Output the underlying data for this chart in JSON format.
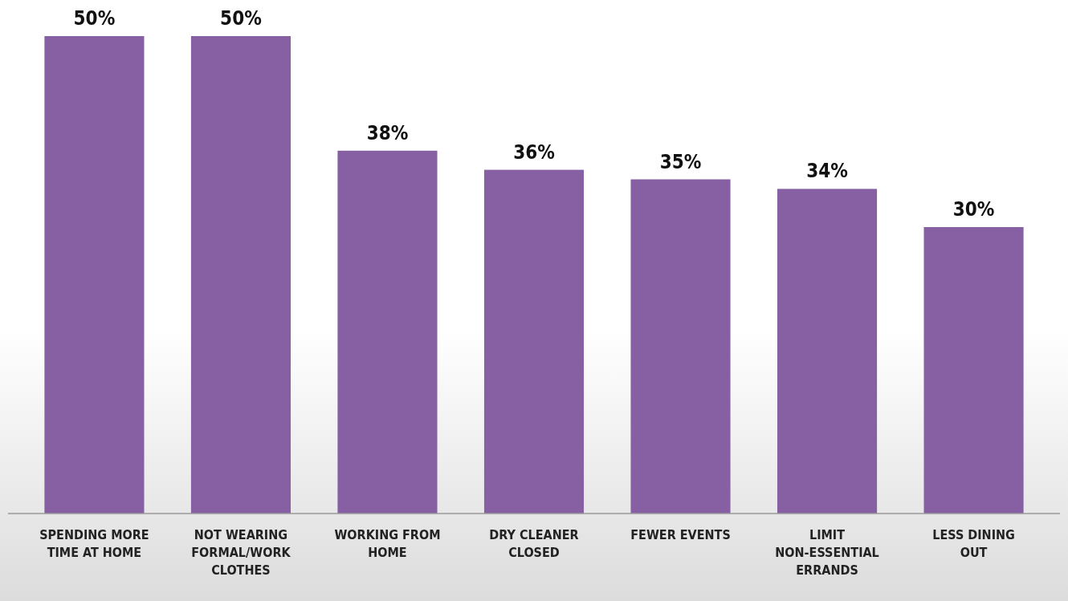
{
  "chart_data": {
    "type": "bar",
    "categories": [
      "SPENDING MORE TIME AT HOME",
      "NOT WEARING FORMAL/WORK CLOTHES",
      "WORKING FROM HOME",
      "DRY CLEANER CLOSED",
      "FEWER EVENTS",
      "LIMIT NON-ESSENTIAL ERRANDS",
      "LESS DINING OUT"
    ],
    "values": [
      50,
      50,
      38,
      36,
      35,
      34,
      30
    ],
    "value_labels": [
      "50%",
      "50%",
      "38%",
      "36%",
      "35%",
      "34%",
      "30%"
    ],
    "color": "#8660a3"
  }
}
